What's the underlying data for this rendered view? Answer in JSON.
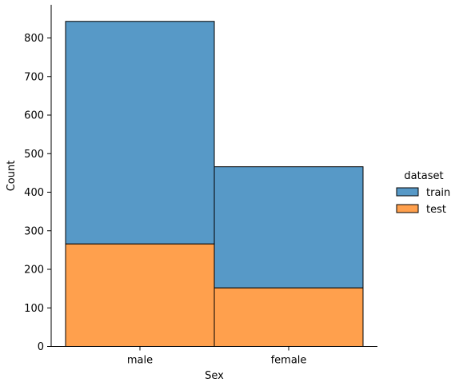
{
  "chart_data": {
    "type": "bar",
    "stacked": true,
    "categories": [
      "male",
      "female"
    ],
    "series": [
      {
        "name": "train",
        "values": [
          577,
          314
        ],
        "color": "#5799c7"
      },
      {
        "name": "test",
        "values": [
          266,
          152
        ],
        "color": "#ffa04d"
      }
    ],
    "title": "",
    "xlabel": "Sex",
    "ylabel": "Count",
    "ylim": [
      0,
      885
    ],
    "yticks": [
      0,
      100,
      200,
      300,
      400,
      500,
      600,
      700,
      800
    ],
    "grid": false,
    "legend": {
      "title": "dataset",
      "placement": "right"
    }
  }
}
